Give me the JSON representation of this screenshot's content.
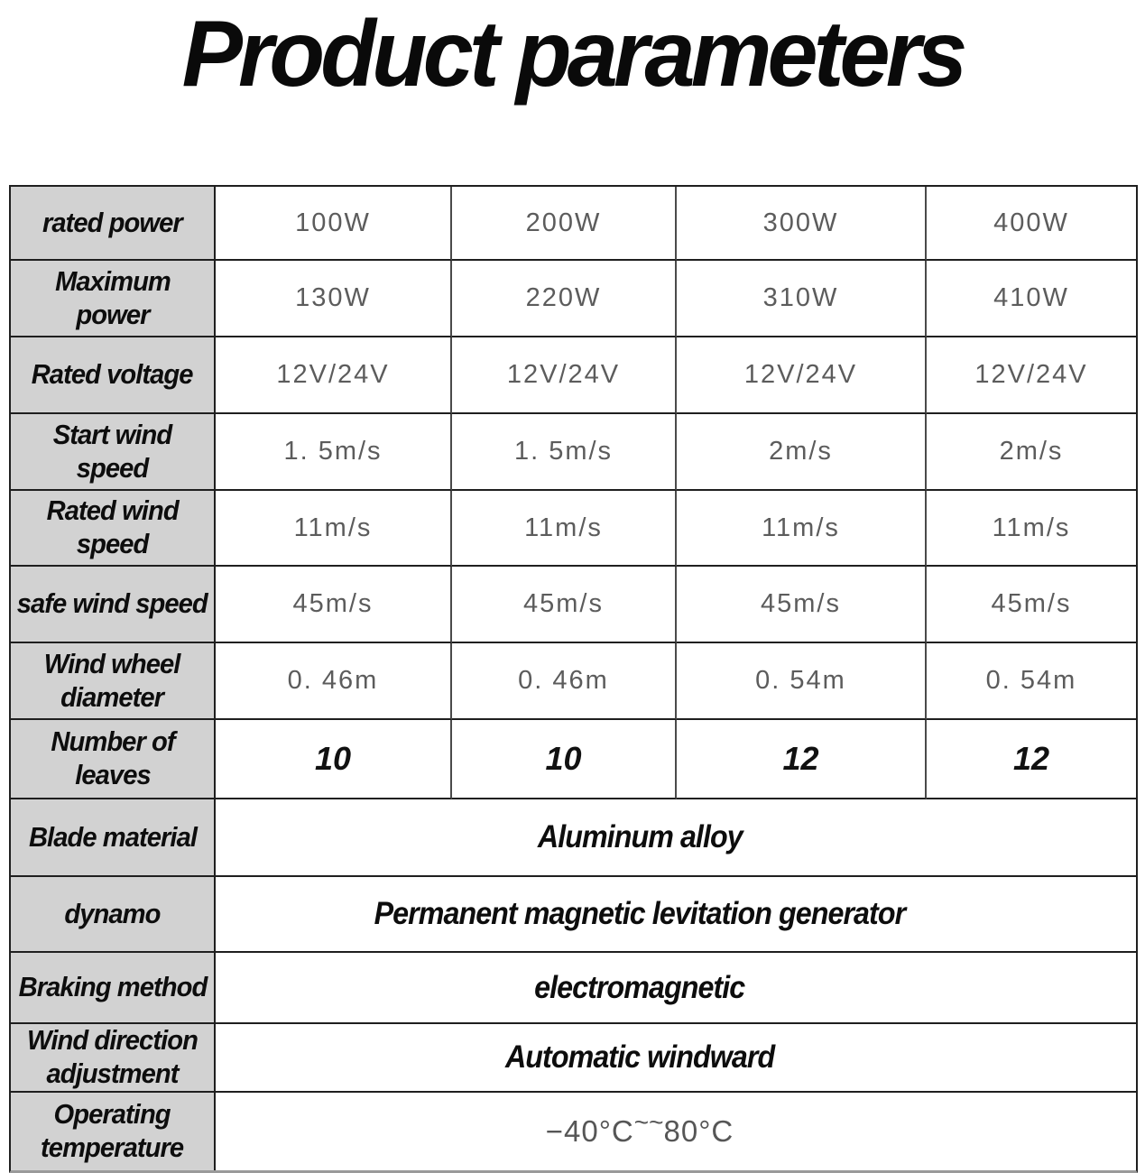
{
  "title": "Product parameters",
  "colors": {
    "label_cell_bg": "#d2d2d2",
    "table_border": "#1f1f1f",
    "bottom_border": "#9a9a9a",
    "value_text": "#5c5c5c",
    "label_text": "#0d0d0d"
  },
  "table": {
    "rows": [
      {
        "label": "rated power",
        "values": [
          "100W",
          "200W",
          "300W",
          "400W"
        ]
      },
      {
        "label": "Maximum\npower",
        "values": [
          "130W",
          "220W",
          "310W",
          "410W"
        ]
      },
      {
        "label": "Rated voltage",
        "values": [
          "12V/24V",
          "12V/24V",
          "12V/24V",
          "12V/24V"
        ]
      },
      {
        "label": "Start wind speed",
        "values": [
          "1. 5m/s",
          "1. 5m/s",
          "2m/s",
          "2m/s"
        ]
      },
      {
        "label": "Rated wind\nspeed",
        "values": [
          "11m/s",
          "11m/s",
          "11m/s",
          "11m/s"
        ]
      },
      {
        "label": "safe wind speed",
        "values": [
          "45m/s",
          "45m/s",
          "45m/s",
          "45m/s"
        ]
      },
      {
        "label": "Wind wheel\ndiameter",
        "values": [
          "0. 46m",
          "0. 46m",
          "0. 54m",
          "0. 54m"
        ]
      },
      {
        "label": "Number of\nleaves",
        "values": [
          "10",
          "10",
          "12",
          "12"
        ]
      },
      {
        "label": "Blade material",
        "value": "Aluminum alloy"
      },
      {
        "label": "dynamo",
        "value": "Permanent magnetic levitation generator"
      },
      {
        "label": "Braking method",
        "value": "electromagnetic"
      },
      {
        "label": "Wind direction\nadjustment",
        "value": "Automatic windward"
      },
      {
        "label": "Operating\ntemperature",
        "value_parts": {
          "low": "−40°C",
          "tildes": "~~",
          "high": "80°C"
        }
      }
    ]
  }
}
